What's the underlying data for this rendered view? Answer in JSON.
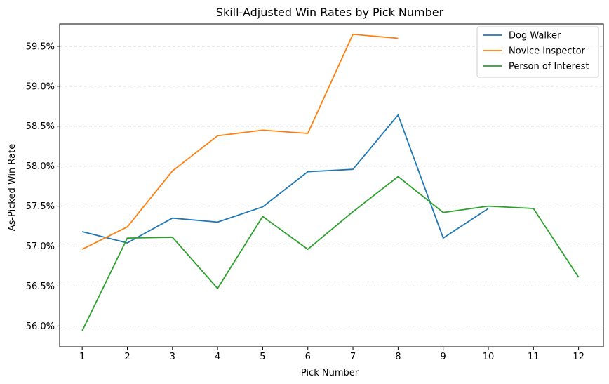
{
  "chart_data": {
    "type": "line",
    "title": "Skill-Adjusted Win Rates by Pick Number",
    "xlabel": "Pick Number",
    "ylabel": "As-Picked Win Rate",
    "x": [
      1,
      2,
      3,
      4,
      5,
      6,
      7,
      8,
      9,
      10,
      11,
      12
    ],
    "xticks": [
      "1",
      "2",
      "3",
      "4",
      "5",
      "6",
      "7",
      "8",
      "9",
      "10",
      "11",
      "12"
    ],
    "xlim": [
      0.5,
      12.55
    ],
    "ylim": [
      55.74,
      59.78
    ],
    "yticks": [
      56.0,
      56.5,
      57.0,
      57.5,
      58.0,
      58.5,
      59.0,
      59.5
    ],
    "ytick_labels": [
      "56.0%",
      "56.5%",
      "57.0%",
      "57.5%",
      "58.0%",
      "58.5%",
      "59.0%",
      "59.5%"
    ],
    "grid": "y-dashed",
    "legend_position": "top-right",
    "series": [
      {
        "name": "Dog Walker",
        "color": "#1f77b4",
        "values": [
          57.18,
          57.04,
          57.35,
          57.3,
          57.49,
          57.93,
          57.96,
          58.64,
          57.1,
          57.47,
          null,
          null
        ]
      },
      {
        "name": "Novice Inspector",
        "color": "#ff7f0e",
        "values": [
          56.96,
          57.24,
          57.94,
          58.38,
          58.45,
          58.41,
          59.65,
          59.6,
          null,
          null,
          null,
          null
        ]
      },
      {
        "name": "Person of Interest",
        "color": "#2ca02c",
        "values": [
          55.94,
          57.1,
          57.11,
          56.47,
          57.37,
          56.96,
          57.43,
          57.87,
          57.42,
          57.5,
          57.47,
          56.61
        ]
      }
    ]
  }
}
